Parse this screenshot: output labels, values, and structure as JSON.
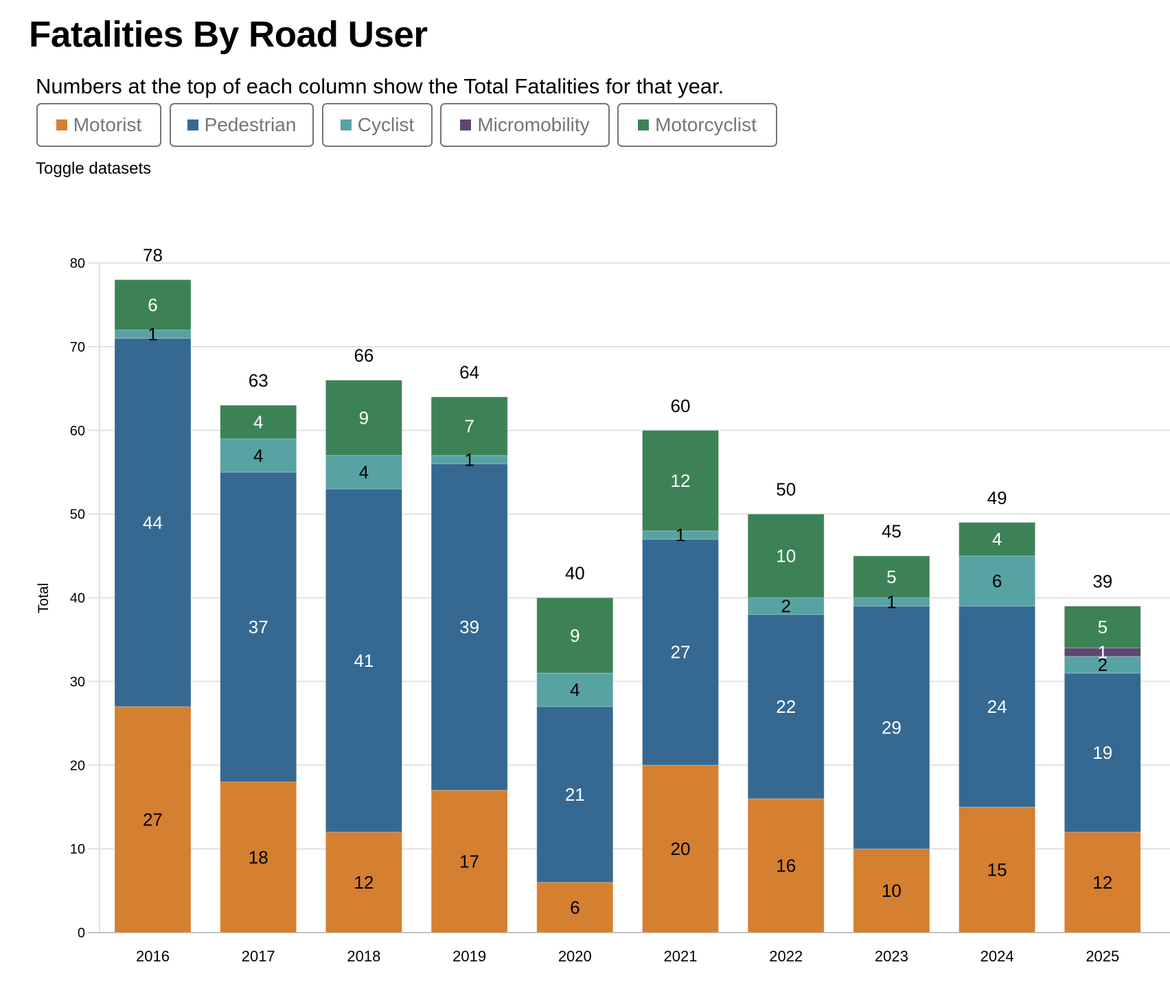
{
  "header": {
    "title": "Fatalities By Road User",
    "subtitle": "Numbers at the top of each column show the Total Fatalities for that year.",
    "toggle_label": "Toggle datasets"
  },
  "legend": [
    {
      "label": "Motorist",
      "color": "#d57f30"
    },
    {
      "label": "Pedestrian",
      "color": "#356992"
    },
    {
      "label": "Cyclist",
      "color": "#57a2a3"
    },
    {
      "label": "Micromobility",
      "color": "#5e466f"
    },
    {
      "label": "Motorcyclist",
      "color": "#3d8257"
    }
  ],
  "chart_data": {
    "type": "bar",
    "stacked": true,
    "title": "Fatalities By Road User",
    "xlabel": "",
    "ylabel": "Total",
    "ylim": [
      0,
      80
    ],
    "yticks": [
      0,
      10,
      20,
      30,
      40,
      50,
      60,
      70,
      80
    ],
    "grid": true,
    "categories": [
      "2016",
      "2017",
      "2018",
      "2019",
      "2020",
      "2021",
      "2022",
      "2023",
      "2024",
      "2025"
    ],
    "totals": [
      78,
      63,
      66,
      64,
      40,
      60,
      50,
      45,
      49,
      39
    ],
    "series": [
      {
        "name": "Motorist",
        "color": "#d57f30",
        "label_color": "#000000",
        "values": [
          27,
          18,
          12,
          17,
          6,
          20,
          16,
          10,
          15,
          12
        ]
      },
      {
        "name": "Pedestrian",
        "color": "#356992",
        "label_color": "#ffffff",
        "values": [
          44,
          37,
          41,
          39,
          21,
          27,
          22,
          29,
          24,
          19
        ]
      },
      {
        "name": "Cyclist",
        "color": "#57a2a3",
        "label_color": "#000000",
        "values": [
          1,
          4,
          4,
          1,
          4,
          1,
          2,
          1,
          6,
          2
        ]
      },
      {
        "name": "Micromobility",
        "color": "#5e466f",
        "label_color": "#ffffff",
        "values": [
          0,
          0,
          0,
          0,
          0,
          0,
          0,
          0,
          0,
          1
        ]
      },
      {
        "name": "Motorcyclist",
        "color": "#3d8257",
        "label_color": "#ffffff",
        "values": [
          6,
          4,
          9,
          7,
          9,
          12,
          10,
          5,
          4,
          5
        ]
      }
    ]
  }
}
